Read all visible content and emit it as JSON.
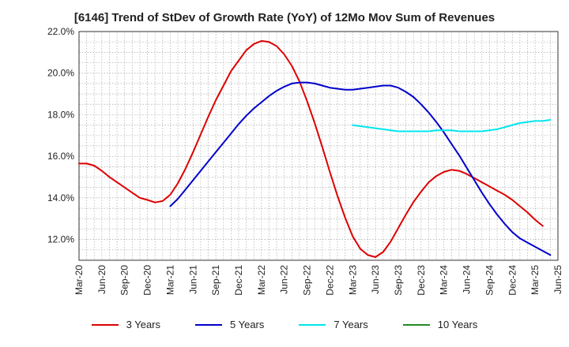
{
  "chart_data": {
    "type": "line",
    "title": "[6146]  Trend of StDev of Growth Rate (YoY) of 12Mo Mov Sum of Revenues",
    "xlabel": "",
    "ylabel": "",
    "ylim": [
      11.0,
      22.0
    ],
    "yticks": [
      "12.0%",
      "14.0%",
      "16.0%",
      "18.0%",
      "20.0%",
      "22.0%"
    ],
    "ytick_values": [
      12,
      14,
      16,
      18,
      20,
      22
    ],
    "x_start": "Mar-20",
    "x_tick_labels": [
      "Mar-20",
      "Jun-20",
      "Sep-20",
      "Dec-20",
      "Mar-21",
      "Jun-21",
      "Sep-21",
      "Dec-21",
      "Mar-22",
      "Jun-22",
      "Sep-22",
      "Dec-22",
      "Mar-23",
      "Jun-23",
      "Sep-23",
      "Dec-23",
      "Mar-24",
      "Jun-24",
      "Sep-24",
      "Dec-24",
      "Mar-25",
      "Jun-25"
    ],
    "x_months_total": 63,
    "grid": true,
    "legend_position": "bottom",
    "series": [
      {
        "name": "3 Years",
        "color": "#dd0000",
        "start_month": 0,
        "values": [
          15.65,
          15.65,
          15.55,
          15.3,
          15.0,
          14.75,
          14.5,
          14.25,
          14.0,
          13.9,
          13.78,
          13.85,
          14.15,
          14.7,
          15.4,
          16.2,
          17.05,
          17.9,
          18.7,
          19.4,
          20.1,
          20.6,
          21.1,
          21.4,
          21.55,
          21.5,
          21.3,
          20.9,
          20.35,
          19.6,
          18.65,
          17.6,
          16.45,
          15.25,
          14.1,
          13.05,
          12.15,
          11.55,
          11.25,
          11.15,
          11.4,
          11.9,
          12.55,
          13.2,
          13.8,
          14.3,
          14.75,
          15.05,
          15.25,
          15.35,
          15.3,
          15.15,
          14.95,
          14.75,
          14.55,
          14.35,
          14.15,
          13.9,
          13.6,
          13.3,
          12.95,
          12.65
        ]
      },
      {
        "name": "5 Years",
        "color": "#0000cc",
        "start_month": 12,
        "values": [
          13.6,
          13.95,
          14.4,
          14.85,
          15.3,
          15.75,
          16.2,
          16.65,
          17.1,
          17.55,
          17.95,
          18.3,
          18.6,
          18.9,
          19.15,
          19.35,
          19.5,
          19.55,
          19.55,
          19.5,
          19.4,
          19.3,
          19.25,
          19.2,
          19.2,
          19.25,
          19.3,
          19.35,
          19.4,
          19.4,
          19.3,
          19.1,
          18.85,
          18.5,
          18.1,
          17.65,
          17.15,
          16.6,
          16.05,
          15.45,
          14.85,
          14.25,
          13.7,
          13.2,
          12.75,
          12.35,
          12.05,
          11.85,
          11.65,
          11.45,
          11.25
        ]
      },
      {
        "name": "7 Years",
        "color": "#00e5ee",
        "start_month": 36,
        "values": [
          17.5,
          17.45,
          17.4,
          17.35,
          17.3,
          17.25,
          17.2,
          17.2,
          17.2,
          17.2,
          17.2,
          17.25,
          17.25,
          17.25,
          17.2,
          17.2,
          17.2,
          17.2,
          17.25,
          17.3,
          17.4,
          17.5,
          17.6,
          17.65,
          17.7,
          17.7,
          17.75
        ]
      },
      {
        "name": "10 Years",
        "color": "#228b22",
        "start_month": 63,
        "values": []
      }
    ]
  },
  "legend": [
    "3 Years",
    "5 Years",
    "7 Years",
    "10 Years"
  ]
}
